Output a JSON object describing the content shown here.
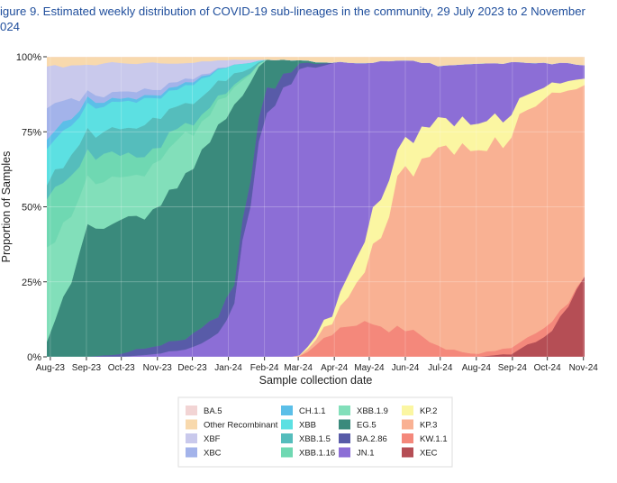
{
  "figure": {
    "title_line1": "igure 9. Estimated weekly distribution of COVID-19 sub-lineages in the community, 29 July 2023 to 2 November",
    "title_line2": "024"
  },
  "chart_data": {
    "type": "area",
    "stacked": true,
    "normalized": true,
    "xlabel": "Sample collection date",
    "ylabel": "Proportion of Samples",
    "x_ticks": [
      "Aug-23",
      "Sep-23",
      "Oct-23",
      "Nov-23",
      "Dec-23",
      "Jan-24",
      "Feb-24",
      "Mar-24",
      "Apr-24",
      "May-24",
      "Jun-24",
      "Jul-24",
      "Aug-24",
      "Sep-24",
      "Oct-24",
      "Nov-24"
    ],
    "y_ticks": [
      "0%",
      "25%",
      "50%",
      "75%",
      "100%"
    ],
    "ylim": [
      0,
      100
    ],
    "x_range": [
      "2023-07-29",
      "2024-11-02"
    ],
    "grid": true,
    "legend_position": "bottom",
    "legend_columns": [
      [
        "BA.5",
        "Other Recombinant",
        "XBF",
        "XBC"
      ],
      [
        "CH.1.1",
        "XBB",
        "XBB.1.5",
        "XBB.1.16"
      ],
      [
        "XBB.1.9",
        "EG.5",
        "BA.2.86",
        "JN.1"
      ],
      [
        "KP.2",
        "KP.3",
        "KW.1.1",
        "XEC"
      ]
    ],
    "stack_order_bottom_to_top": [
      "XEC",
      "KW.1.1",
      "KP.3",
      "KP.2",
      "JN.1",
      "BA.2.86",
      "EG.5",
      "XBB.1.9",
      "XBB.1.16",
      "XBB.1.5",
      "XBB",
      "CH.1.1",
      "XBC",
      "XBF",
      "Other Recombinant",
      "BA.5"
    ],
    "colors": {
      "BA.5": "#f2d4d4",
      "Other Recombinant": "#f8d9ad",
      "XBF": "#c9c9ec",
      "XBC": "#a3b3ea",
      "CH.1.1": "#5bbfe8",
      "XBB": "#5ce0e2",
      "XBB.1.5": "#55bdbc",
      "XBB.1.16": "#6fd8b2",
      "XBB.1.9": "#82dfba",
      "EG.5": "#3a8a7c",
      "BA.2.86": "#585ba8",
      "JN.1": "#8c6ed6",
      "KP.2": "#fbf6a2",
      "KP.3": "#f9b193",
      "KW.1.1": "#f4887b",
      "XEC": "#b54e55"
    },
    "anchor_dates": [
      "2023-07-29",
      "2023-09-01",
      "2023-10-01",
      "2023-11-01",
      "2023-12-01",
      "2024-01-01",
      "2024-02-01",
      "2024-03-01",
      "2024-04-01",
      "2024-05-01",
      "2024-06-01",
      "2024-07-01",
      "2024-08-01",
      "2024-09-01",
      "2024-10-01",
      "2024-11-02"
    ],
    "series": [
      {
        "name": "XEC",
        "values": [
          0,
          0,
          0,
          0,
          0,
          0,
          0,
          0,
          0,
          0,
          0,
          0,
          0,
          1,
          8,
          29
        ]
      },
      {
        "name": "KW.1.1",
        "values": [
          0,
          0,
          0,
          0,
          0,
          0,
          0,
          0,
          8,
          12,
          10,
          3,
          1,
          2,
          3,
          0
        ]
      },
      {
        "name": "KP.3",
        "values": [
          0,
          0,
          0,
          0,
          0,
          0,
          0,
          0,
          4,
          20,
          52,
          68,
          66,
          72,
          76,
          61
        ]
      },
      {
        "name": "KP.2",
        "values": [
          0,
          0,
          0,
          0,
          0,
          0,
          0,
          0,
          3,
          13,
          10,
          10,
          9,
          7,
          4,
          2
        ]
      },
      {
        "name": "JN.1",
        "values": [
          0,
          0,
          0,
          1,
          3,
          10,
          80,
          96,
          83,
          53,
          27,
          16,
          22,
          16,
          7,
          5
        ]
      },
      {
        "name": "BA.2.86",
        "values": [
          0,
          0,
          1,
          3,
          4,
          7,
          8,
          2,
          0,
          0,
          0,
          0,
          0,
          0,
          0,
          0
        ]
      },
      {
        "name": "EG.5",
        "values": [
          5,
          40,
          45,
          46,
          55,
          64,
          11,
          1,
          0,
          0,
          0,
          0,
          0,
          0,
          0,
          0
        ]
      },
      {
        "name": "XBB.1.9",
        "values": [
          30,
          17,
          15,
          16,
          13,
          7,
          0,
          0,
          0,
          0,
          0,
          0,
          0,
          0,
          0,
          0
        ]
      },
      {
        "name": "XBB.1.16",
        "values": [
          18,
          10,
          7,
          5,
          3,
          1,
          0,
          0,
          0,
          0,
          0,
          0,
          0,
          0,
          0,
          0
        ]
      },
      {
        "name": "XBB.1.5",
        "values": [
          5,
          7,
          8,
          9,
          7,
          4,
          0,
          0,
          0,
          0,
          0,
          0,
          0,
          0,
          0,
          0
        ]
      },
      {
        "name": "XBB",
        "values": [
          12,
          9,
          8,
          7,
          6,
          4,
          0,
          0,
          0,
          0,
          0,
          0,
          0,
          0,
          0,
          0
        ]
      },
      {
        "name": "CH.1.1",
        "values": [
          3,
          2,
          1,
          1,
          1,
          0,
          0,
          0,
          0,
          0,
          0,
          0,
          0,
          0,
          0,
          0
        ]
      },
      {
        "name": "XBC",
        "values": [
          12,
          2,
          2,
          2,
          1,
          0,
          0,
          0,
          0,
          0,
          0,
          0,
          0,
          0,
          0,
          0
        ]
      },
      {
        "name": "XBF",
        "values": [
          12,
          10,
          11,
          8,
          5,
          2,
          0,
          0,
          0,
          0,
          0,
          0,
          0,
          0,
          0,
          0
        ]
      },
      {
        "name": "Other Recombinant",
        "values": [
          3,
          3,
          2,
          2,
          2,
          1,
          1,
          1,
          2,
          2,
          1,
          3,
          2,
          2,
          2,
          3
        ]
      },
      {
        "name": "BA.5",
        "values": [
          0,
          0,
          0,
          0,
          0,
          0,
          0,
          0,
          0,
          0,
          0,
          0,
          0,
          0,
          0,
          0
        ]
      }
    ]
  }
}
